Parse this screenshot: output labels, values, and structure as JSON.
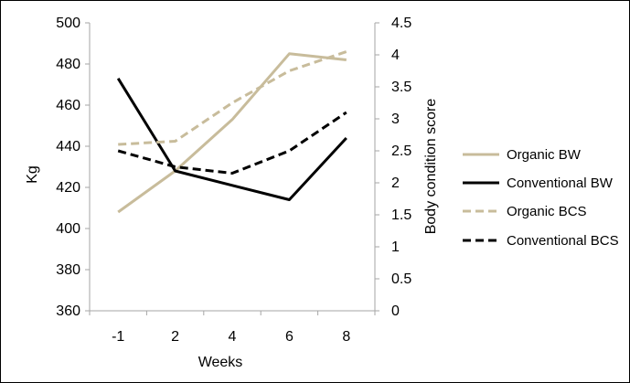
{
  "chart_data": {
    "type": "line",
    "categories": [
      "-1",
      "2",
      "4",
      "6",
      "8"
    ],
    "xlabel": "Weeks",
    "ylabel_left": "Kg",
    "ylabel_right": "Body condition score",
    "ylim_left": [
      360,
      500
    ],
    "ylim_right": [
      0,
      4.5
    ],
    "yticks_left": [
      "360",
      "380",
      "400",
      "420",
      "440",
      "460",
      "480",
      "500"
    ],
    "yticks_right": [
      "0",
      "0.5",
      "1",
      "1.5",
      "2",
      "2.5",
      "3",
      "3.5",
      "4",
      "4.5"
    ],
    "grid": false,
    "legend_position": "right",
    "series": [
      {
        "name": "Organic BW",
        "axis": "left",
        "style": "solid",
        "color": "#C8BC9B",
        "values": [
          408,
          428,
          453,
          485,
          482
        ]
      },
      {
        "name": "Conventional BW",
        "axis": "left",
        "style": "solid",
        "color": "#000000",
        "values": [
          473,
          428,
          421,
          414,
          444
        ]
      },
      {
        "name": "Organic BCS",
        "axis": "right",
        "style": "dashed",
        "color": "#C8BC9B",
        "values": [
          2.6,
          2.65,
          3.25,
          3.75,
          4.05
        ]
      },
      {
        "name": "Conventional BCS",
        "axis": "right",
        "style": "dashed",
        "color": "#000000",
        "values": [
          2.5,
          2.25,
          2.15,
          2.5,
          3.1
        ]
      }
    ]
  }
}
